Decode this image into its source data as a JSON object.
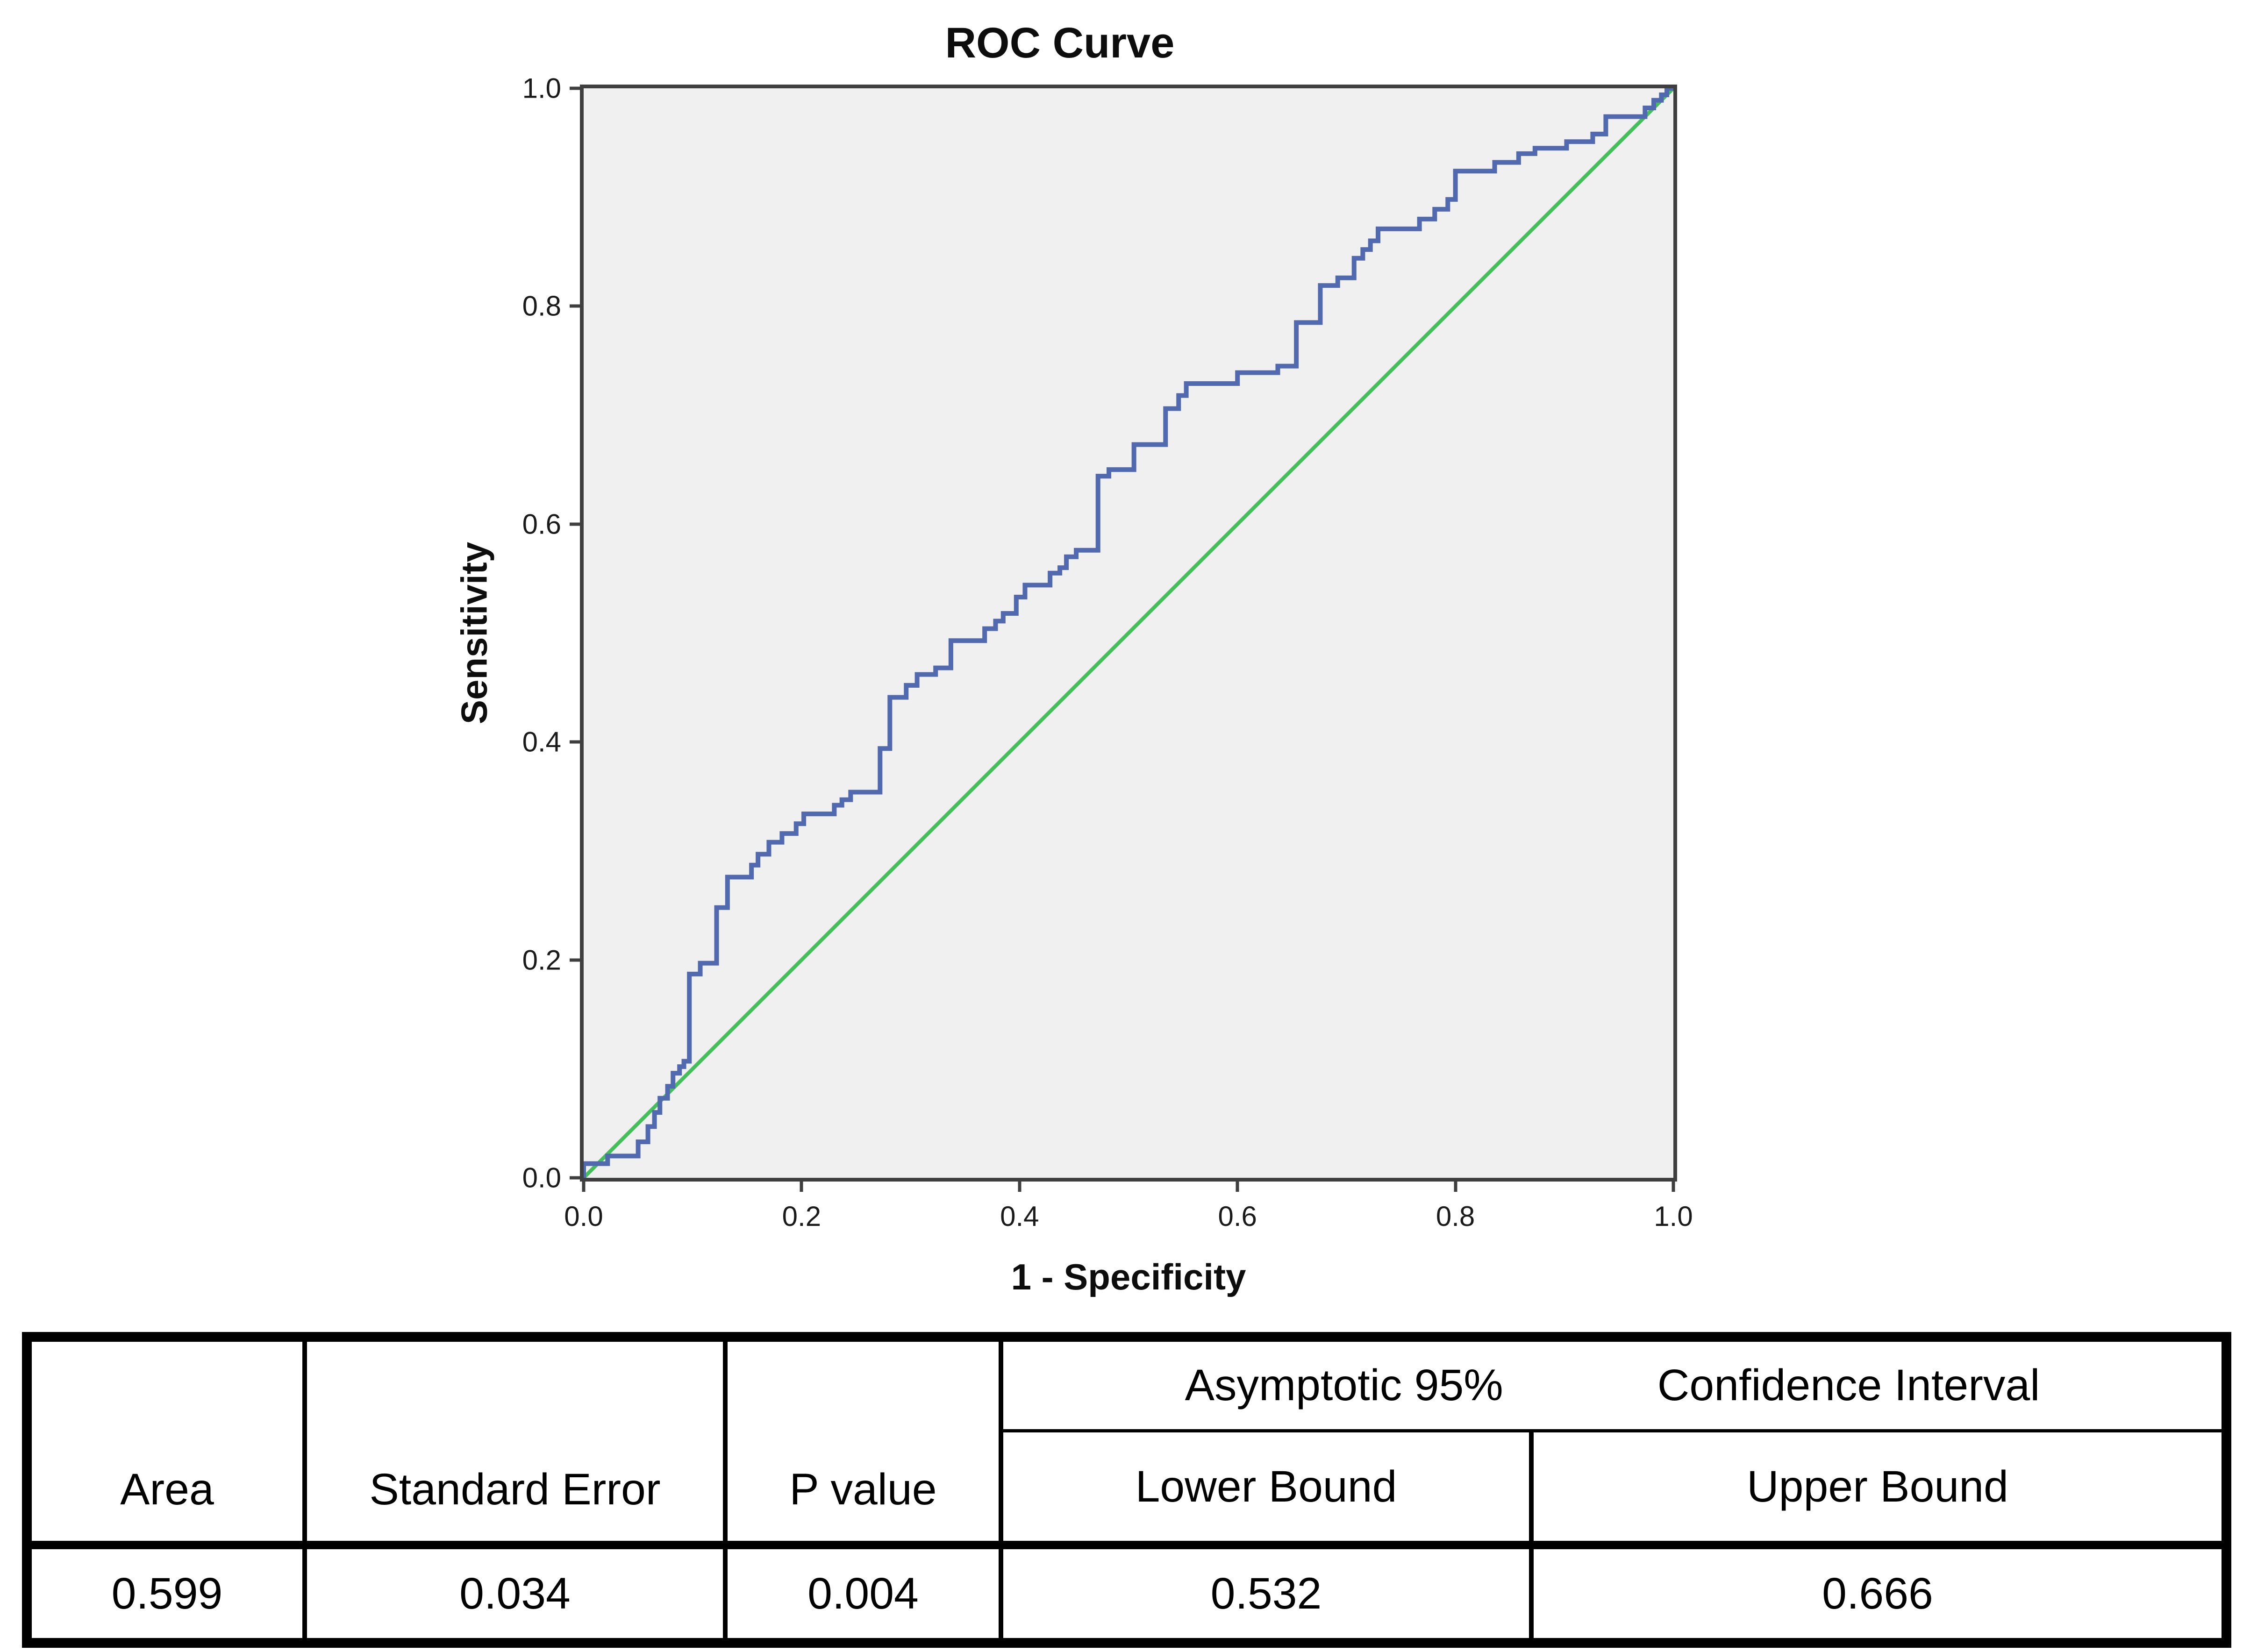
{
  "chart_data": {
    "type": "line",
    "title": "ROC Curve",
    "xlabel": "1 - Specificity",
    "ylabel": "Sensitivity",
    "xlim": [
      0,
      1
    ],
    "ylim": [
      0,
      1
    ],
    "grid": false,
    "legend": "none",
    "plot_bg_color": "#f0f0f1",
    "plot_border_color": "#3f3f3f",
    "x_ticks": {
      "values": [
        0,
        0.2,
        0.4,
        0.6,
        0.8,
        1.0
      ],
      "labels": [
        "0.0",
        "0.2",
        "0.4",
        "0.6",
        "0.8",
        "1.0"
      ]
    },
    "y_ticks": {
      "values": [
        0,
        0.2,
        0.4,
        0.6,
        0.8,
        1.0
      ],
      "labels": [
        "0.0",
        "0.2",
        "0.4",
        "0.6",
        "0.8",
        "1.0"
      ]
    },
    "series": [
      {
        "name": "ROC curve",
        "type": "step",
        "color": "#5169ae",
        "stroke_width": 4.3,
        "points": [
          [
            0,
            0
          ],
          [
            0,
            0.013
          ],
          [
            0.022,
            0.013
          ],
          [
            0.022,
            0.02
          ],
          [
            0.05,
            0.02
          ],
          [
            0.05,
            0.033
          ],
          [
            0.059,
            0.033
          ],
          [
            0.059,
            0.047
          ],
          [
            0.065,
            0.047
          ],
          [
            0.065,
            0.06
          ],
          [
            0.07,
            0.06
          ],
          [
            0.07,
            0.073
          ],
          [
            0.077,
            0.073
          ],
          [
            0.077,
            0.084
          ],
          [
            0.082,
            0.084
          ],
          [
            0.082,
            0.096
          ],
          [
            0.088,
            0.096
          ],
          [
            0.088,
            0.102
          ],
          [
            0.092,
            0.102
          ],
          [
            0.092,
            0.107
          ],
          [
            0.097,
            0.107
          ],
          [
            0.097,
            0.187
          ],
          [
            0.107,
            0.187
          ],
          [
            0.107,
            0.197
          ],
          [
            0.122,
            0.197
          ],
          [
            0.122,
            0.248
          ],
          [
            0.132,
            0.248
          ],
          [
            0.132,
            0.276
          ],
          [
            0.154,
            0.276
          ],
          [
            0.154,
            0.287
          ],
          [
            0.16,
            0.287
          ],
          [
            0.16,
            0.297
          ],
          [
            0.17,
            0.297
          ],
          [
            0.17,
            0.308
          ],
          [
            0.182,
            0.308
          ],
          [
            0.182,
            0.316
          ],
          [
            0.195,
            0.316
          ],
          [
            0.195,
            0.325
          ],
          [
            0.202,
            0.325
          ],
          [
            0.202,
            0.334
          ],
          [
            0.23,
            0.334
          ],
          [
            0.23,
            0.342
          ],
          [
            0.237,
            0.342
          ],
          [
            0.237,
            0.347
          ],
          [
            0.245,
            0.347
          ],
          [
            0.245,
            0.354
          ],
          [
            0.272,
            0.354
          ],
          [
            0.272,
            0.394
          ],
          [
            0.281,
            0.394
          ],
          [
            0.281,
            0.441
          ],
          [
            0.296,
            0.441
          ],
          [
            0.296,
            0.452
          ],
          [
            0.306,
            0.452
          ],
          [
            0.306,
            0.462
          ],
          [
            0.323,
            0.462
          ],
          [
            0.323,
            0.468
          ],
          [
            0.337,
            0.468
          ],
          [
            0.337,
            0.493
          ],
          [
            0.368,
            0.493
          ],
          [
            0.368,
            0.504
          ],
          [
            0.378,
            0.504
          ],
          [
            0.378,
            0.511
          ],
          [
            0.385,
            0.511
          ],
          [
            0.385,
            0.518
          ],
          [
            0.397,
            0.518
          ],
          [
            0.397,
            0.533
          ],
          [
            0.405,
            0.533
          ],
          [
            0.405,
            0.544
          ],
          [
            0.428,
            0.544
          ],
          [
            0.428,
            0.555
          ],
          [
            0.437,
            0.555
          ],
          [
            0.437,
            0.56
          ],
          [
            0.443,
            0.56
          ],
          [
            0.443,
            0.57
          ],
          [
            0.452,
            0.57
          ],
          [
            0.452,
            0.576
          ],
          [
            0.472,
            0.576
          ],
          [
            0.472,
            0.644
          ],
          [
            0.482,
            0.644
          ],
          [
            0.482,
            0.65
          ],
          [
            0.505,
            0.65
          ],
          [
            0.505,
            0.673
          ],
          [
            0.534,
            0.673
          ],
          [
            0.534,
            0.706
          ],
          [
            0.546,
            0.706
          ],
          [
            0.546,
            0.718
          ],
          [
            0.553,
            0.718
          ],
          [
            0.553,
            0.729
          ],
          [
            0.6,
            0.729
          ],
          [
            0.6,
            0.739
          ],
          [
            0.637,
            0.739
          ],
          [
            0.637,
            0.745
          ],
          [
            0.654,
            0.745
          ],
          [
            0.654,
            0.785
          ],
          [
            0.676,
            0.785
          ],
          [
            0.676,
            0.819
          ],
          [
            0.692,
            0.819
          ],
          [
            0.692,
            0.826
          ],
          [
            0.707,
            0.826
          ],
          [
            0.707,
            0.844
          ],
          [
            0.715,
            0.844
          ],
          [
            0.715,
            0.852
          ],
          [
            0.722,
            0.852
          ],
          [
            0.722,
            0.86
          ],
          [
            0.729,
            0.86
          ],
          [
            0.729,
            0.871
          ],
          [
            0.767,
            0.871
          ],
          [
            0.767,
            0.88
          ],
          [
            0.781,
            0.88
          ],
          [
            0.781,
            0.889
          ],
          [
            0.793,
            0.889
          ],
          [
            0.793,
            0.898
          ],
          [
            0.8,
            0.898
          ],
          [
            0.8,
            0.924
          ],
          [
            0.836,
            0.924
          ],
          [
            0.836,
            0.932
          ],
          [
            0.858,
            0.932
          ],
          [
            0.858,
            0.94
          ],
          [
            0.873,
            0.94
          ],
          [
            0.873,
            0.945
          ],
          [
            0.902,
            0.945
          ],
          [
            0.902,
            0.951
          ],
          [
            0.926,
            0.951
          ],
          [
            0.926,
            0.958
          ],
          [
            0.938,
            0.958
          ],
          [
            0.938,
            0.974
          ],
          [
            0.974,
            0.974
          ],
          [
            0.974,
            0.982
          ],
          [
            0.982,
            0.982
          ],
          [
            0.982,
            0.989
          ],
          [
            0.989,
            0.989
          ],
          [
            0.989,
            0.994
          ],
          [
            0.994,
            0.994
          ],
          [
            0.994,
            1
          ],
          [
            1,
            1
          ]
        ]
      },
      {
        "name": "Reference diagonal",
        "type": "line",
        "color": "#45be5c",
        "stroke_width": 3.4,
        "points": [
          [
            0,
            0
          ],
          [
            1,
            1
          ]
        ]
      }
    ]
  },
  "table": {
    "ci_header_part1": "Asymptotic 95%",
    "ci_header_part2": "Confidence Interval",
    "columns": [
      "Area",
      "Standard Error",
      "P value",
      "Lower Bound",
      "Upper Bound"
    ],
    "values": [
      "0.599",
      "0.034",
      "0.004",
      "0.532",
      "0.666"
    ]
  }
}
